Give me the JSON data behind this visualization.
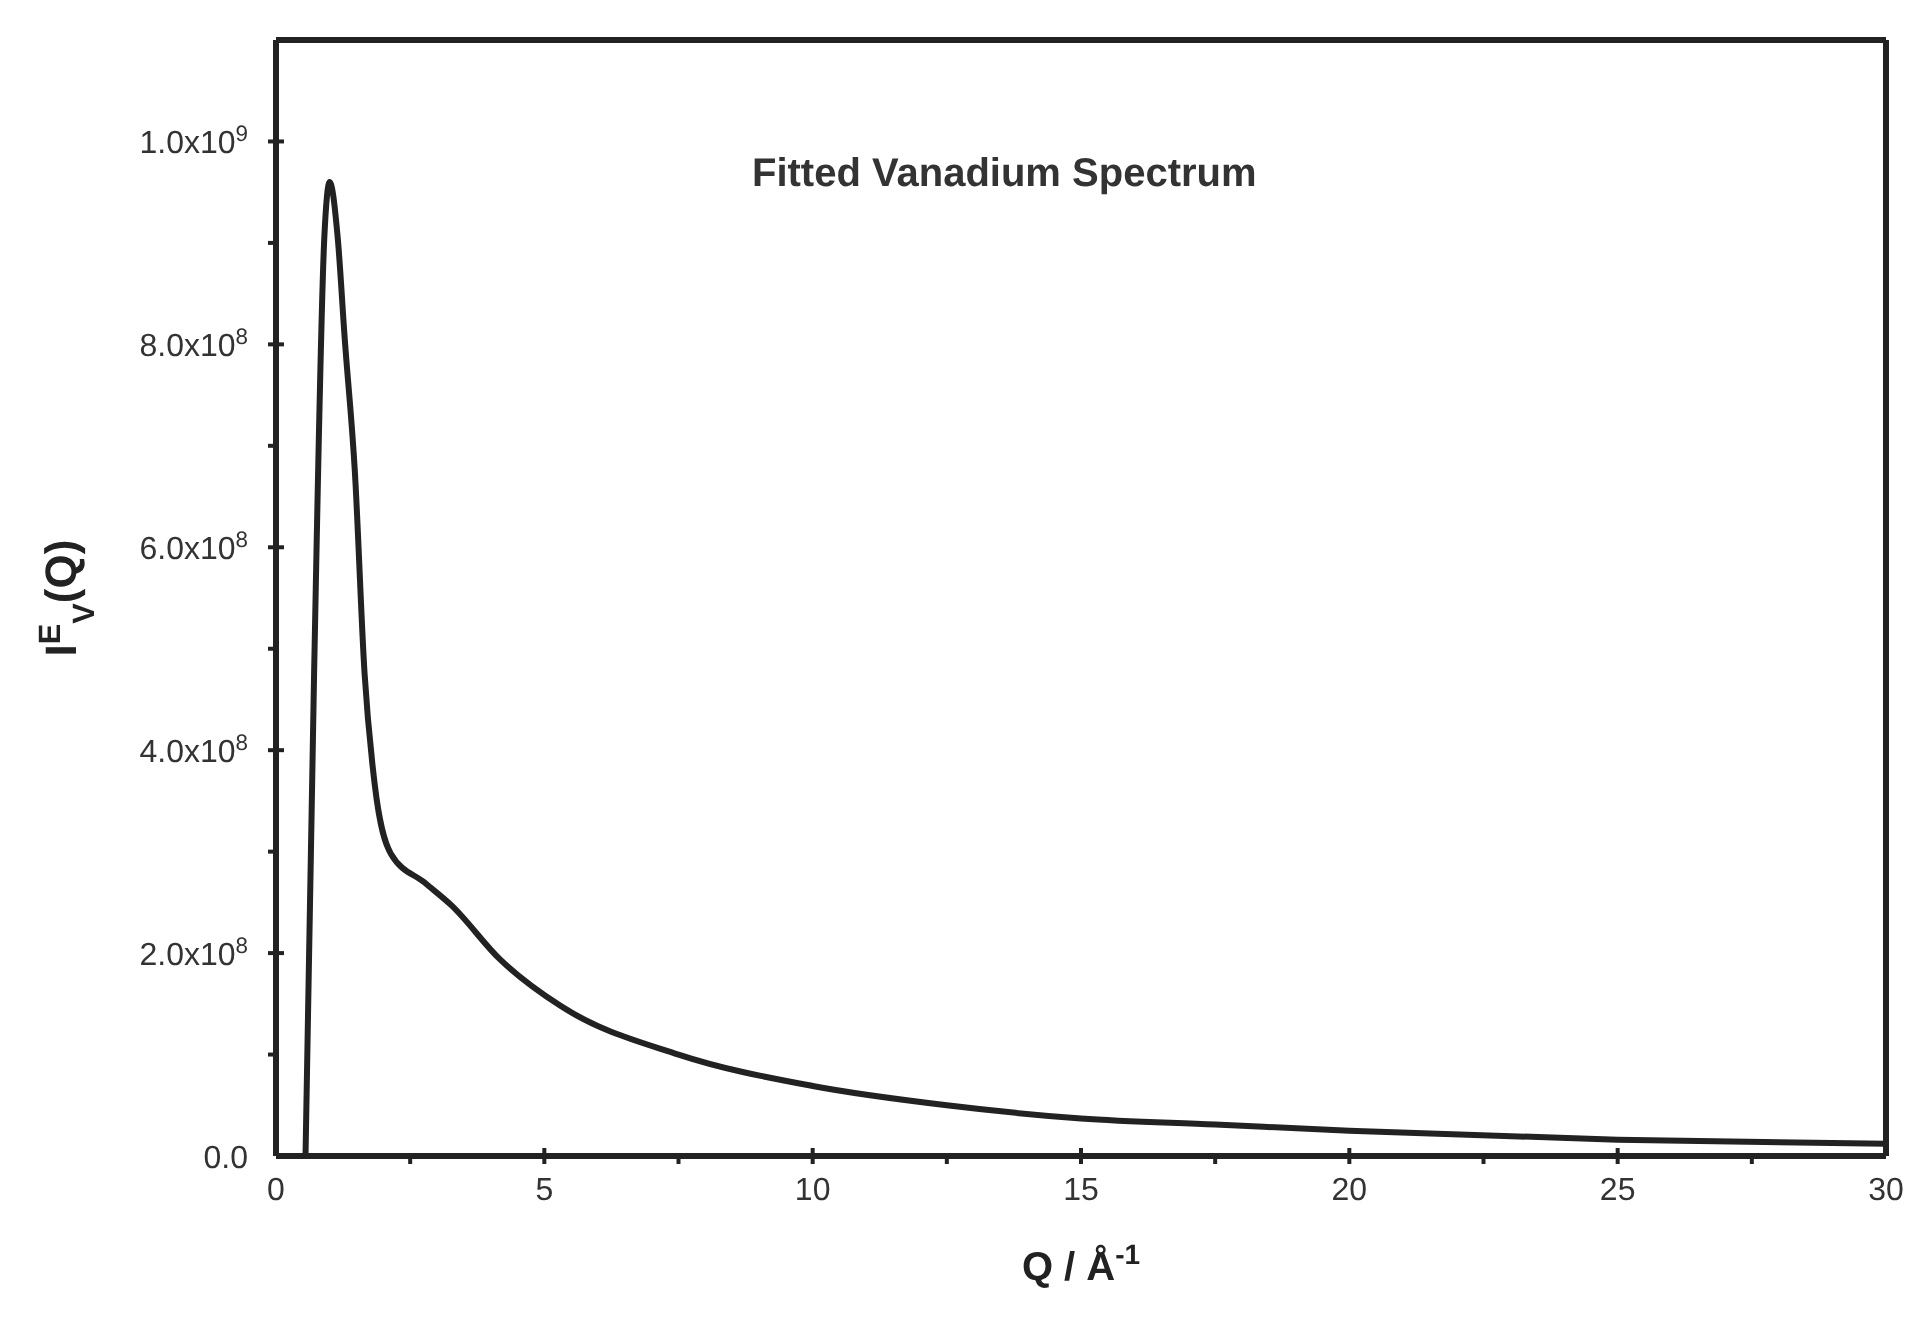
{
  "chart_data": {
    "type": "line",
    "xlabel": "Q / Å$^{-1}$",
    "ylabel": "I$^{E}$$_{V}$(Q)",
    "annotations": [
      "Fitted Vanadium Spectrum"
    ],
    "series": [
      {
        "color": "#222222",
        "x": [
          0.55,
          0.71,
          0.9,
          1.0,
          1.15,
          1.28,
          1.47,
          1.65,
          1.84,
          2.14,
          2.78,
          3.27,
          4.17,
          5.3,
          7.5,
          10,
          12.5,
          15,
          17.5,
          20,
          25,
          30
        ],
        "values": [
          0,
          476000000,
          905000000,
          960000000,
          905000000,
          806000000,
          674000000,
          476000000,
          366000000,
          298000000,
          269000000,
          247000000,
          194000000,
          148000000,
          100000000,
          69000000,
          50000000,
          37000000,
          31000000,
          25000000,
          16000000,
          12000000
        ]
      }
    ],
    "xlim": [
      0,
      30
    ],
    "xticks": [
      0,
      {
        "value": 2.5,
        "label": null
      },
      5,
      {
        "value": 7.5,
        "label": null
      },
      10,
      {
        "value": 12.5,
        "label": null
      },
      15,
      {
        "value": 17.5,
        "label": null
      },
      20,
      {
        "value": 22.5,
        "label": null
      },
      25,
      {
        "value": 27.5,
        "label": null
      },
      30
    ],
    "ylim": [
      0,
      1100000000
    ],
    "yticks": [
      {
        "value": 0,
        "label": "0.0"
      },
      {
        "value": 100000000,
        "label": null
      },
      {
        "value": 200000000,
        "label": "2.0x10$^{8}$"
      },
      {
        "value": 300000000,
        "label": null
      },
      {
        "value": 400000000,
        "label": "4.0x10$^{8}$"
      },
      {
        "value": 500000000,
        "label": null
      },
      {
        "value": 600000000,
        "label": "6.0x10$^{8}$"
      },
      {
        "value": 700000000,
        "label": null
      },
      {
        "value": 800000000,
        "label": "8.0x10$^{8}$"
      },
      {
        "value": 900000000,
        "label": null
      },
      {
        "value": 1000000000,
        "label": "1.0x10$^{9}$"
      }
    ],
    "line_style": "solid"
  }
}
